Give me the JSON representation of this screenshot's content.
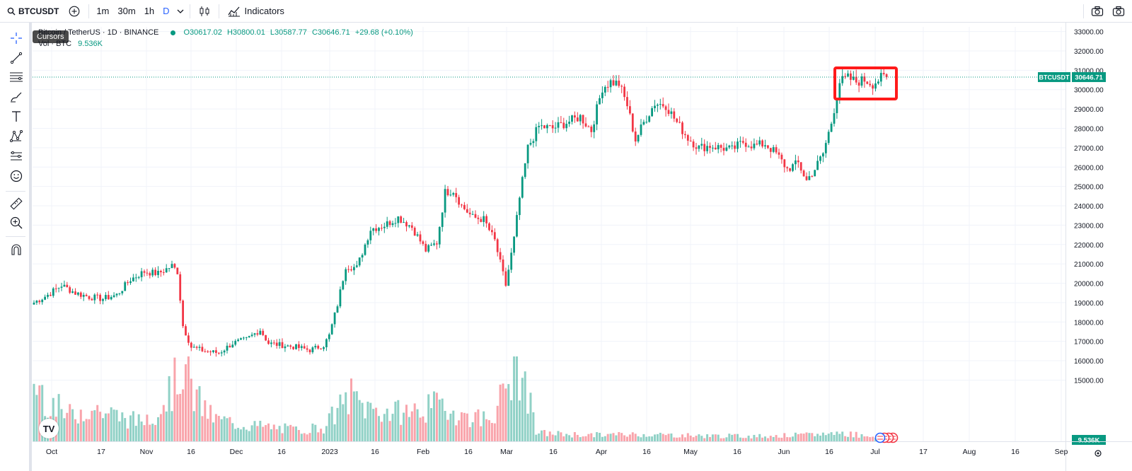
{
  "toolbar": {
    "symbol": "BTCUSDT",
    "intervals": [
      "1m",
      "30m",
      "1h",
      "D"
    ],
    "active_interval": "D",
    "indicators_label": "Indicators"
  },
  "tooltip": "Cursors",
  "legend": {
    "symbol_desc": "Bitcoin / TetherUS · 1D · BINANCE",
    "open": "O30617.02",
    "high": "H30800.01",
    "low": "L30587.77",
    "close": "C30646.71",
    "change": "+29.68 (+0.10%)",
    "volume_label": "Vol · BTC",
    "volume_value": "9.536K"
  },
  "chart_data": {
    "type": "candlestick",
    "y_ticks": [
      "33000.00",
      "32000.00",
      "31000.00",
      "30000.00",
      "29000.00",
      "28000.00",
      "27000.00",
      "26000.00",
      "25000.00",
      "24000.00",
      "23000.00",
      "22000.00",
      "21000.00",
      "20000.00",
      "19000.00",
      "18000.00",
      "17000.00",
      "16000.00",
      "15000.00"
    ],
    "x_ticks": [
      "Oct",
      "17",
      "Nov",
      "16",
      "Dec",
      "16",
      "2023",
      "16",
      "Feb",
      "16",
      "Mar",
      "16",
      "Apr",
      "16",
      "May",
      "16",
      "Jun",
      "16",
      "Jul",
      "17",
      "Aug",
      "16",
      "Sep"
    ],
    "price_label": {
      "symbol": "BTCUSDT",
      "value": "30646.71"
    },
    "volume_label": "9.536K",
    "price_anchors": [
      [
        0,
        19000
      ],
      [
        5,
        19400
      ],
      [
        10,
        19900
      ],
      [
        15,
        19500
      ],
      [
        20,
        19300
      ],
      [
        25,
        19200
      ],
      [
        30,
        19400
      ],
      [
        35,
        20200
      ],
      [
        40,
        20600
      ],
      [
        45,
        20500
      ],
      [
        50,
        20900
      ],
      [
        52,
        20600
      ],
      [
        54,
        17800
      ],
      [
        57,
        16700
      ],
      [
        62,
        16500
      ],
      [
        67,
        16400
      ],
      [
        72,
        16900
      ],
      [
        77,
        17100
      ],
      [
        82,
        17600
      ],
      [
        85,
        16900
      ],
      [
        90,
        16800
      ],
      [
        95,
        16700
      ],
      [
        100,
        16550
      ],
      [
        105,
        16800
      ],
      [
        107,
        17300
      ],
      [
        110,
        18900
      ],
      [
        113,
        20900
      ],
      [
        117,
        20800
      ],
      [
        122,
        22800
      ],
      [
        127,
        23000
      ],
      [
        132,
        23400
      ],
      [
        137,
        22900
      ],
      [
        142,
        21700
      ],
      [
        146,
        22100
      ],
      [
        149,
        24700
      ],
      [
        152,
        24800
      ],
      [
        155,
        24000
      ],
      [
        159,
        23400
      ],
      [
        163,
        23300
      ],
      [
        167,
        22200
      ],
      [
        171,
        19900
      ],
      [
        174,
        22300
      ],
      [
        176,
        24400
      ],
      [
        179,
        27000
      ],
      [
        183,
        28100
      ],
      [
        188,
        28000
      ],
      [
        193,
        28300
      ],
      [
        198,
        28600
      ],
      [
        202,
        27900
      ],
      [
        206,
        30100
      ],
      [
        209,
        30400
      ],
      [
        212,
        30300
      ],
      [
        215,
        29200
      ],
      [
        218,
        27400
      ],
      [
        221,
        28300
      ],
      [
        225,
        29300
      ],
      [
        229,
        29200
      ],
      [
        233,
        28300
      ],
      [
        237,
        27500
      ],
      [
        241,
        27000
      ],
      [
        245,
        27100
      ],
      [
        249,
        27000
      ],
      [
        253,
        26900
      ],
      [
        257,
        27300
      ],
      [
        261,
        27100
      ],
      [
        265,
        27200
      ],
      [
        269,
        26700
      ],
      [
        273,
        25900
      ],
      [
        277,
        26200
      ],
      [
        280,
        25300
      ],
      [
        283,
        25900
      ],
      [
        286,
        26700
      ],
      [
        289,
        28300
      ],
      [
        292,
        30400
      ],
      [
        295,
        30600
      ],
      [
        298,
        30400
      ],
      [
        301,
        30500
      ],
      [
        304,
        30300
      ],
      [
        307,
        30600
      ],
      [
        309,
        30646.71
      ]
    ],
    "volume_anchors": [
      [
        0,
        2.1
      ],
      [
        5,
        1.5
      ],
      [
        12,
        0.9
      ],
      [
        20,
        1.2
      ],
      [
        30,
        0.9
      ],
      [
        38,
        0.7
      ],
      [
        45,
        1.1
      ],
      [
        52,
        2.2
      ],
      [
        54,
        2.9
      ],
      [
        58,
        1.6
      ],
      [
        65,
        0.8
      ],
      [
        75,
        0.6
      ],
      [
        85,
        0.5
      ],
      [
        95,
        0.4
      ],
      [
        105,
        0.5
      ],
      [
        110,
        1.1
      ],
      [
        115,
        1.6
      ],
      [
        120,
        1.2
      ],
      [
        130,
        1.0
      ],
      [
        140,
        1.1
      ],
      [
        148,
        1.3
      ],
      [
        155,
        0.9
      ],
      [
        165,
        0.8
      ],
      [
        170,
        1.6
      ],
      [
        174,
        2.6
      ],
      [
        178,
        2.1
      ],
      [
        182,
        0.3
      ],
      [
        200,
        0.22
      ],
      [
        220,
        0.25
      ],
      [
        240,
        0.2
      ],
      [
        260,
        0.18
      ],
      [
        280,
        0.22
      ],
      [
        292,
        0.3
      ],
      [
        300,
        0.22
      ],
      [
        309,
        0.12
      ]
    ]
  }
}
